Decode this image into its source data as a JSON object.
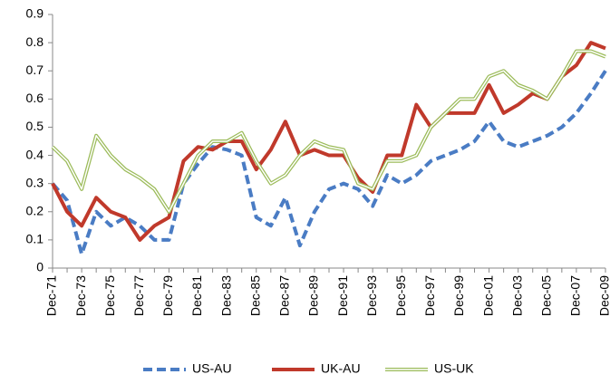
{
  "chart_data": {
    "type": "line",
    "categories": [
      "Dec-71",
      null,
      "Dec-73",
      null,
      "Dec-75",
      null,
      "Dec-77",
      null,
      "Dec-79",
      null,
      "Dec-81",
      null,
      "Dec-83",
      null,
      "Dec-85",
      null,
      "Dec-87",
      null,
      "Dec-89",
      null,
      "Dec-91",
      null,
      "Dec-93",
      null,
      "Dec-95",
      null,
      "Dec-97",
      null,
      "Dec-99",
      null,
      "Dec-01",
      null,
      "Dec-03",
      null,
      "Dec-05",
      null,
      "Dec-07",
      null,
      "Dec-09"
    ],
    "series": [
      {
        "name": "US-AU",
        "color": "#4a7cc4",
        "style": "dashed",
        "values": [
          0.3,
          0.24,
          0.05,
          0.2,
          0.15,
          0.18,
          0.15,
          0.1,
          0.1,
          0.3,
          0.37,
          0.43,
          0.42,
          0.4,
          0.18,
          0.15,
          0.25,
          0.08,
          0.2,
          0.28,
          0.3,
          0.28,
          0.22,
          0.33,
          0.3,
          0.33,
          0.38,
          0.4,
          0.42,
          0.45,
          0.52,
          0.45,
          0.43,
          0.45,
          0.47,
          0.5,
          0.55,
          0.62,
          0.7
        ]
      },
      {
        "name": "UK-AU",
        "color": "#c0392b",
        "style": "solid",
        "values": [
          0.3,
          0.2,
          0.15,
          0.25,
          0.2,
          0.18,
          0.1,
          0.15,
          0.18,
          0.38,
          0.43,
          0.42,
          0.45,
          0.45,
          0.35,
          0.42,
          0.52,
          0.4,
          0.42,
          0.4,
          0.4,
          0.32,
          0.27,
          0.4,
          0.4,
          0.58,
          0.5,
          0.55,
          0.55,
          0.55,
          0.65,
          0.55,
          0.58,
          0.62,
          0.6,
          0.68,
          0.72,
          0.8,
          0.78
        ]
      },
      {
        "name": "US-UK",
        "color": "#9bbb59",
        "style": "double",
        "values": [
          0.43,
          0.38,
          0.28,
          0.47,
          0.4,
          0.35,
          0.32,
          0.28,
          0.2,
          0.3,
          0.4,
          0.45,
          0.45,
          0.48,
          0.38,
          0.3,
          0.33,
          0.4,
          0.45,
          0.43,
          0.42,
          0.3,
          0.28,
          0.38,
          0.38,
          0.4,
          0.5,
          0.55,
          0.6,
          0.6,
          0.68,
          0.7,
          0.65,
          0.63,
          0.6,
          0.68,
          0.77,
          0.77,
          0.75
        ]
      }
    ],
    "ylim": [
      0,
      0.9
    ],
    "yticks": [
      0,
      0.1,
      0.2,
      0.3,
      0.4,
      0.5,
      0.6,
      0.7,
      0.8,
      0.9
    ],
    "grid": false,
    "legend": "bottom"
  }
}
